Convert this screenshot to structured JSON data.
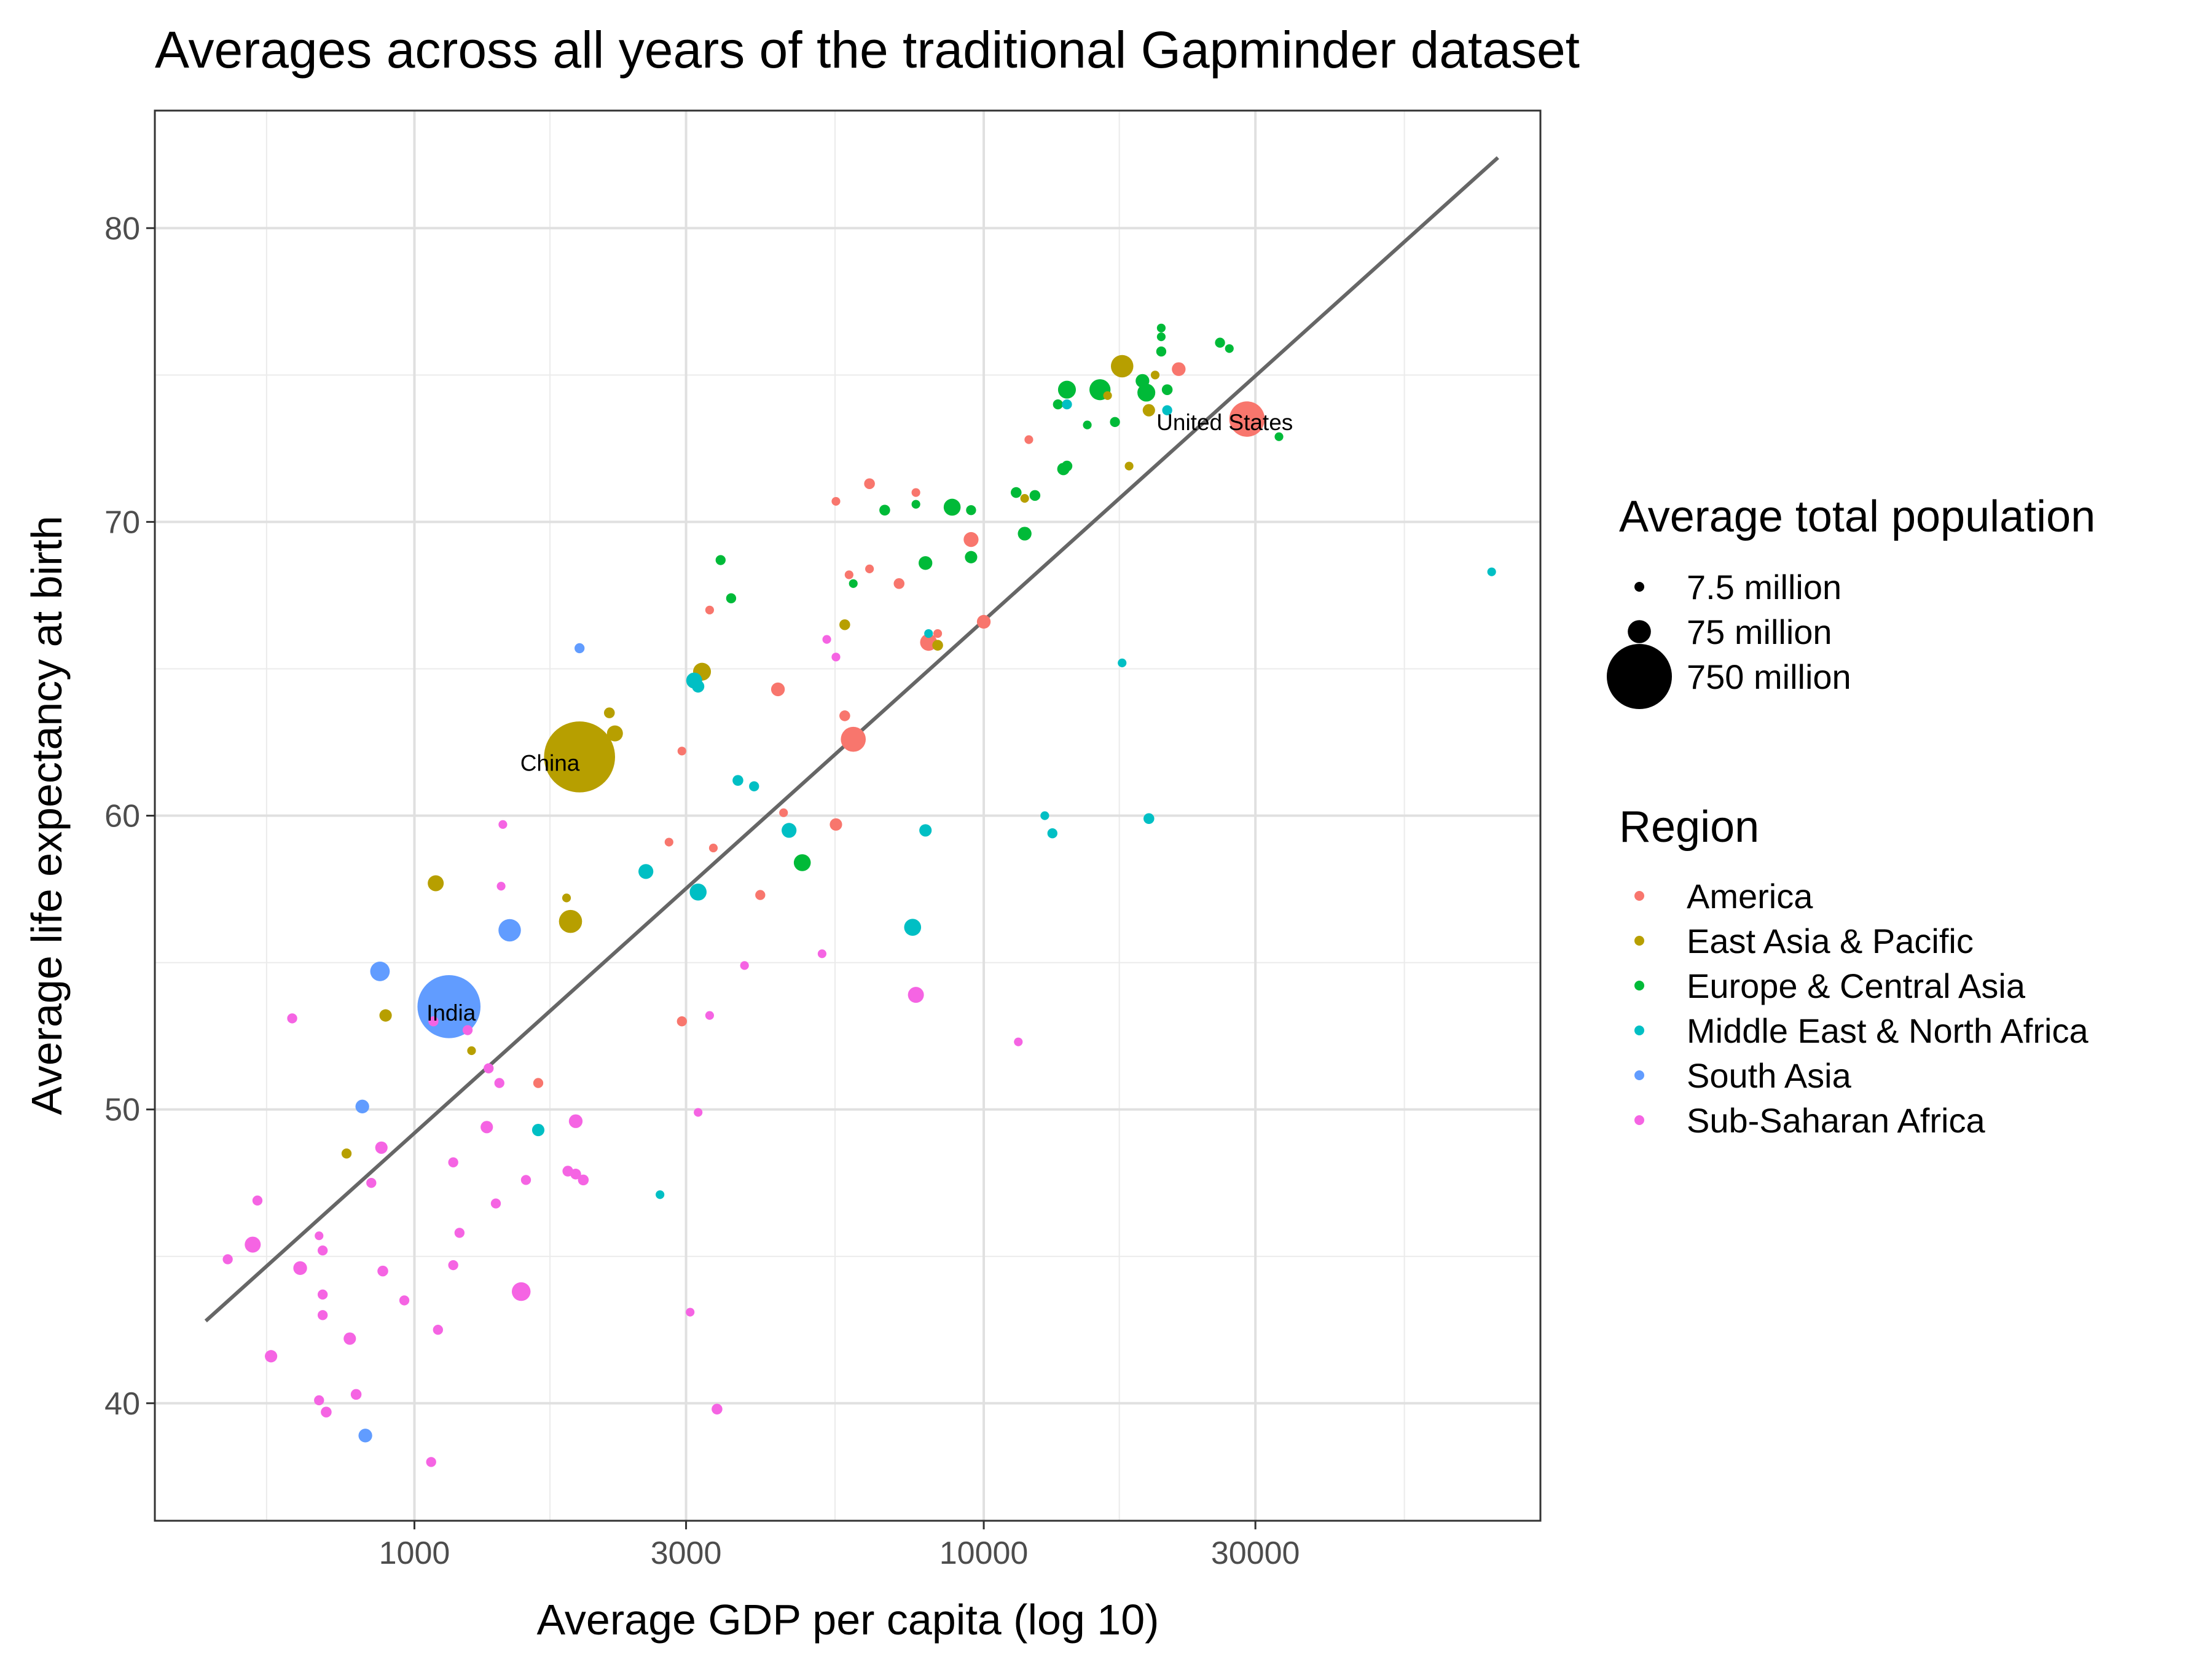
{
  "chart_data": {
    "type": "scatter",
    "title": "Averages across all years of the traditional Gapminder dataset",
    "xlabel": "Average GDP per capita (log 10)",
    "ylabel": "Average life expectancy at birth",
    "x_scale": "log10",
    "xlim": [
      350,
      95000
    ],
    "ylim": [
      36,
      84
    ],
    "x_ticks": [
      1000,
      3000,
      10000,
      30000
    ],
    "x_tick_labels": [
      "1000",
      "3000",
      "10000",
      "30000"
    ],
    "y_ticks": [
      40,
      50,
      60,
      70,
      80
    ],
    "y_tick_labels": [
      "40",
      "50",
      "60",
      "70",
      "80"
    ],
    "grid": true,
    "legend_position": "right",
    "size_legend": {
      "title": "Average total population",
      "entries": [
        {
          "label": "7.5 million",
          "value": 7.5
        },
        {
          "label": "75 million",
          "value": 75
        },
        {
          "label": "750 million",
          "value": 750
        }
      ]
    },
    "color_legend": {
      "title": "Region",
      "entries": [
        {
          "label": "America",
          "color": "#F8766D"
        },
        {
          "label": "East Asia & Pacific",
          "color": "#B79F00"
        },
        {
          "label": "Europe & Central Asia",
          "color": "#00BA38"
        },
        {
          "label": "Middle East & North Africa",
          "color": "#00BFC4"
        },
        {
          "label": "South Asia",
          "color": "#619CFF"
        },
        {
          "label": "Sub-Saharan Africa",
          "color": "#F564E3"
        }
      ]
    },
    "trend_line": {
      "color": "#666666",
      "x": [
        430,
        80000
      ],
      "y": [
        42.8,
        82.4
      ]
    },
    "labels": [
      {
        "text": "China",
        "x": 1730,
        "y": 61.8
      },
      {
        "text": "India",
        "x": 1160,
        "y": 53.3
      },
      {
        "text": "United States",
        "x": 26500,
        "y": 73.4
      }
    ],
    "points": [
      {
        "region": "America",
        "x": 29000,
        "y": 73.5,
        "pop": 200
      },
      {
        "region": "America",
        "x": 22000,
        "y": 75.2,
        "pop": 20
      },
      {
        "region": "America",
        "x": 12000,
        "y": 72.8,
        "pop": 5
      },
      {
        "region": "America",
        "x": 6300,
        "y": 71.3,
        "pop": 10
      },
      {
        "region": "America",
        "x": 5500,
        "y": 70.7,
        "pop": 5
      },
      {
        "region": "America",
        "x": 7600,
        "y": 71.0,
        "pop": 5
      },
      {
        "region": "America",
        "x": 9500,
        "y": 69.4,
        "pop": 25
      },
      {
        "region": "America",
        "x": 5800,
        "y": 68.2,
        "pop": 5
      },
      {
        "region": "America",
        "x": 6300,
        "y": 68.4,
        "pop": 5
      },
      {
        "region": "America",
        "x": 7100,
        "y": 67.9,
        "pop": 10
      },
      {
        "region": "America",
        "x": 3300,
        "y": 67.0,
        "pop": 5
      },
      {
        "region": "America",
        "x": 10000,
        "y": 66.6,
        "pop": 20
      },
      {
        "region": "America",
        "x": 8300,
        "y": 66.2,
        "pop": 5
      },
      {
        "region": "America",
        "x": 8000,
        "y": 65.9,
        "pop": 35
      },
      {
        "region": "America",
        "x": 4350,
        "y": 64.3,
        "pop": 20
      },
      {
        "region": "America",
        "x": 5700,
        "y": 63.4,
        "pop": 10
      },
      {
        "region": "America",
        "x": 5900,
        "y": 62.6,
        "pop": 90
      },
      {
        "region": "America",
        "x": 2950,
        "y": 62.2,
        "pop": 5
      },
      {
        "region": "America",
        "x": 4450,
        "y": 60.1,
        "pop": 5
      },
      {
        "region": "America",
        "x": 5500,
        "y": 59.7,
        "pop": 15
      },
      {
        "region": "America",
        "x": 2800,
        "y": 59.1,
        "pop": 5
      },
      {
        "region": "America",
        "x": 3350,
        "y": 58.9,
        "pop": 5
      },
      {
        "region": "America",
        "x": 4050,
        "y": 57.3,
        "pop": 8
      },
      {
        "region": "America",
        "x": 2950,
        "y": 53.0,
        "pop": 8
      },
      {
        "region": "America",
        "x": 1650,
        "y": 50.9,
        "pop": 8
      },
      {
        "region": "East Asia & Pacific",
        "x": 1950,
        "y": 62.0,
        "pop": 900
      },
      {
        "region": "East Asia & Pacific",
        "x": 17500,
        "y": 75.3,
        "pop": 70
      },
      {
        "region": "East Asia & Pacific",
        "x": 20000,
        "y": 75.0,
        "pop": 5
      },
      {
        "region": "East Asia & Pacific",
        "x": 19500,
        "y": 73.8,
        "pop": 15
      },
      {
        "region": "East Asia & Pacific",
        "x": 16500,
        "y": 74.3,
        "pop": 5
      },
      {
        "region": "East Asia & Pacific",
        "x": 18000,
        "y": 71.9,
        "pop": 5
      },
      {
        "region": "East Asia & Pacific",
        "x": 11800,
        "y": 70.8,
        "pop": 5
      },
      {
        "region": "East Asia & Pacific",
        "x": 5700,
        "y": 66.5,
        "pop": 10
      },
      {
        "region": "East Asia & Pacific",
        "x": 8300,
        "y": 65.8,
        "pop": 10
      },
      {
        "region": "East Asia & Pacific",
        "x": 3200,
        "y": 64.9,
        "pop": 40
      },
      {
        "region": "East Asia & Pacific",
        "x": 2200,
        "y": 63.5,
        "pop": 10
      },
      {
        "region": "East Asia & Pacific",
        "x": 2250,
        "y": 62.8,
        "pop": 30
      },
      {
        "region": "East Asia & Pacific",
        "x": 1090,
        "y": 57.7,
        "pop": 30
      },
      {
        "region": "East Asia & Pacific",
        "x": 1850,
        "y": 57.2,
        "pop": 5
      },
      {
        "region": "East Asia & Pacific",
        "x": 1880,
        "y": 56.4,
        "pop": 75
      },
      {
        "region": "East Asia & Pacific",
        "x": 890,
        "y": 53.2,
        "pop": 15
      },
      {
        "region": "East Asia & Pacific",
        "x": 1260,
        "y": 52.0,
        "pop": 5
      },
      {
        "region": "East Asia & Pacific",
        "x": 760,
        "y": 48.5,
        "pop": 8
      },
      {
        "region": "Europe & Central Asia",
        "x": 20500,
        "y": 76.6,
        "pop": 5
      },
      {
        "region": "Europe & Central Asia",
        "x": 20500,
        "y": 76.3,
        "pop": 5
      },
      {
        "region": "Europe & Central Asia",
        "x": 20500,
        "y": 75.8,
        "pop": 8
      },
      {
        "region": "Europe & Central Asia",
        "x": 26000,
        "y": 76.1,
        "pop": 8
      },
      {
        "region": "Europe & Central Asia",
        "x": 27000,
        "y": 75.9,
        "pop": 5
      },
      {
        "region": "Europe & Central Asia",
        "x": 14000,
        "y": 74.5,
        "pop": 40
      },
      {
        "region": "Europe & Central Asia",
        "x": 16000,
        "y": 74.5,
        "pop": 60
      },
      {
        "region": "Europe & Central Asia",
        "x": 19000,
        "y": 74.8,
        "pop": 20
      },
      {
        "region": "Europe & Central Asia",
        "x": 19300,
        "y": 74.4,
        "pop": 40
      },
      {
        "region": "Europe & Central Asia",
        "x": 21000,
        "y": 74.5,
        "pop": 10
      },
      {
        "region": "Europe & Central Asia",
        "x": 13500,
        "y": 74.0,
        "pop": 8
      },
      {
        "region": "Europe & Central Asia",
        "x": 17000,
        "y": 73.4,
        "pop": 8
      },
      {
        "region": "Europe & Central Asia",
        "x": 15200,
        "y": 73.3,
        "pop": 5
      },
      {
        "region": "Europe & Central Asia",
        "x": 33000,
        "y": 72.9,
        "pop": 5
      },
      {
        "region": "Europe & Central Asia",
        "x": 14000,
        "y": 71.9,
        "pop": 10
      },
      {
        "region": "Europe & Central Asia",
        "x": 13800,
        "y": 71.8,
        "pop": 15
      },
      {
        "region": "Europe & Central Asia",
        "x": 11400,
        "y": 71.0,
        "pop": 10
      },
      {
        "region": "Europe & Central Asia",
        "x": 12300,
        "y": 70.9,
        "pop": 10
      },
      {
        "region": "Europe & Central Asia",
        "x": 8800,
        "y": 70.5,
        "pop": 35
      },
      {
        "region": "Europe & Central Asia",
        "x": 9500,
        "y": 70.4,
        "pop": 8
      },
      {
        "region": "Europe & Central Asia",
        "x": 6700,
        "y": 70.4,
        "pop": 10
      },
      {
        "region": "Europe & Central Asia",
        "x": 7600,
        "y": 70.6,
        "pop": 5
      },
      {
        "region": "Europe & Central Asia",
        "x": 11800,
        "y": 69.6,
        "pop": 20
      },
      {
        "region": "Europe & Central Asia",
        "x": 9500,
        "y": 68.8,
        "pop": 15
      },
      {
        "region": "Europe & Central Asia",
        "x": 7900,
        "y": 68.6,
        "pop": 20
      },
      {
        "region": "Europe & Central Asia",
        "x": 3450,
        "y": 68.7,
        "pop": 8
      },
      {
        "region": "Europe & Central Asia",
        "x": 5900,
        "y": 67.9,
        "pop": 5
      },
      {
        "region": "Europe & Central Asia",
        "x": 3600,
        "y": 67.4,
        "pop": 8
      },
      {
        "region": "Europe & Central Asia",
        "x": 4800,
        "y": 58.4,
        "pop": 35
      },
      {
        "region": "Middle East & North Africa",
        "x": 78000,
        "y": 68.3,
        "pop": 5
      },
      {
        "region": "Middle East & North Africa",
        "x": 17500,
        "y": 65.2,
        "pop": 5
      },
      {
        "region": "Middle East & North Africa",
        "x": 21000,
        "y": 73.8,
        "pop": 8
      },
      {
        "region": "Middle East & North Africa",
        "x": 14000,
        "y": 74.0,
        "pop": 8
      },
      {
        "region": "Middle East & North Africa",
        "x": 8000,
        "y": 66.2,
        "pop": 5
      },
      {
        "region": "Middle East & North Africa",
        "x": 3100,
        "y": 64.6,
        "pop": 30
      },
      {
        "region": "Middle East & North Africa",
        "x": 3150,
        "y": 64.4,
        "pop": 15
      },
      {
        "region": "Middle East & North Africa",
        "x": 3700,
        "y": 61.2,
        "pop": 10
      },
      {
        "region": "Middle East & North Africa",
        "x": 3950,
        "y": 61.0,
        "pop": 8
      },
      {
        "region": "Middle East & North Africa",
        "x": 4550,
        "y": 59.5,
        "pop": 25
      },
      {
        "region": "Middle East & North Africa",
        "x": 2550,
        "y": 58.1,
        "pop": 25
      },
      {
        "region": "Middle East & North Africa",
        "x": 3150,
        "y": 57.4,
        "pop": 35
      },
      {
        "region": "Middle East & North Africa",
        "x": 7900,
        "y": 59.5,
        "pop": 15
      },
      {
        "region": "Middle East & North Africa",
        "x": 7500,
        "y": 56.2,
        "pop": 35
      },
      {
        "region": "Middle East & North Africa",
        "x": 12800,
        "y": 60.0,
        "pop": 5
      },
      {
        "region": "Middle East & North Africa",
        "x": 13200,
        "y": 59.4,
        "pop": 8
      },
      {
        "region": "Middle East & North Africa",
        "x": 19500,
        "y": 59.9,
        "pop": 10
      },
      {
        "region": "Middle East & North Africa",
        "x": 1650,
        "y": 49.3,
        "pop": 15
      },
      {
        "region": "Middle East & North Africa",
        "x": 2700,
        "y": 47.1,
        "pop": 5
      },
      {
        "region": "South Asia",
        "x": 1150,
        "y": 53.5,
        "pop": 700
      },
      {
        "region": "South Asia",
        "x": 1950,
        "y": 65.7,
        "pop": 8
      },
      {
        "region": "South Asia",
        "x": 1470,
        "y": 56.1,
        "pop": 70
      },
      {
        "region": "South Asia",
        "x": 870,
        "y": 54.7,
        "pop": 50
      },
      {
        "region": "South Asia",
        "x": 810,
        "y": 50.1,
        "pop": 20
      },
      {
        "region": "South Asia",
        "x": 820,
        "y": 38.9,
        "pop": 20
      },
      {
        "region": "Sub-Saharan Africa",
        "x": 5300,
        "y": 66.0,
        "pop": 5
      },
      {
        "region": "Sub-Saharan Africa",
        "x": 5500,
        "y": 65.4,
        "pop": 5
      },
      {
        "region": "Sub-Saharan Africa",
        "x": 1430,
        "y": 59.7,
        "pop": 5
      },
      {
        "region": "Sub-Saharan Africa",
        "x": 1420,
        "y": 57.6,
        "pop": 5
      },
      {
        "region": "Sub-Saharan Africa",
        "x": 3800,
        "y": 54.9,
        "pop": 5
      },
      {
        "region": "Sub-Saharan Africa",
        "x": 5200,
        "y": 55.3,
        "pop": 5
      },
      {
        "region": "Sub-Saharan Africa",
        "x": 7600,
        "y": 53.9,
        "pop": 30
      },
      {
        "region": "Sub-Saharan Africa",
        "x": 11500,
        "y": 52.3,
        "pop": 5
      },
      {
        "region": "Sub-Saharan Africa",
        "x": 3300,
        "y": 53.2,
        "pop": 5
      },
      {
        "region": "Sub-Saharan Africa",
        "x": 3150,
        "y": 49.9,
        "pop": 5
      },
      {
        "region": "Sub-Saharan Africa",
        "x": 610,
        "y": 53.1,
        "pop": 8
      },
      {
        "region": "Sub-Saharan Africa",
        "x": 1080,
        "y": 53.0,
        "pop": 8
      },
      {
        "region": "Sub-Saharan Africa",
        "x": 1240,
        "y": 52.7,
        "pop": 8
      },
      {
        "region": "Sub-Saharan Africa",
        "x": 1350,
        "y": 51.4,
        "pop": 8
      },
      {
        "region": "Sub-Saharan Africa",
        "x": 1410,
        "y": 50.9,
        "pop": 8
      },
      {
        "region": "Sub-Saharan Africa",
        "x": 1340,
        "y": 49.4,
        "pop": 15
      },
      {
        "region": "Sub-Saharan Africa",
        "x": 1920,
        "y": 49.6,
        "pop": 20
      },
      {
        "region": "Sub-Saharan Africa",
        "x": 875,
        "y": 48.7,
        "pop": 15
      },
      {
        "region": "Sub-Saharan Africa",
        "x": 1170,
        "y": 48.2,
        "pop": 8
      },
      {
        "region": "Sub-Saharan Africa",
        "x": 1860,
        "y": 47.9,
        "pop": 10
      },
      {
        "region": "Sub-Saharan Africa",
        "x": 1920,
        "y": 47.8,
        "pop": 10
      },
      {
        "region": "Sub-Saharan Africa",
        "x": 1980,
        "y": 47.6,
        "pop": 10
      },
      {
        "region": "Sub-Saharan Africa",
        "x": 1570,
        "y": 47.6,
        "pop": 8
      },
      {
        "region": "Sub-Saharan Africa",
        "x": 840,
        "y": 47.5,
        "pop": 8
      },
      {
        "region": "Sub-Saharan Africa",
        "x": 1390,
        "y": 46.8,
        "pop": 8
      },
      {
        "region": "Sub-Saharan Africa",
        "x": 530,
        "y": 46.9,
        "pop": 8
      },
      {
        "region": "Sub-Saharan Africa",
        "x": 1200,
        "y": 45.8,
        "pop": 8
      },
      {
        "region": "Sub-Saharan Africa",
        "x": 520,
        "y": 45.4,
        "pop": 30
      },
      {
        "region": "Sub-Saharan Africa",
        "x": 680,
        "y": 45.7,
        "pop": 5
      },
      {
        "region": "Sub-Saharan Africa",
        "x": 690,
        "y": 45.2,
        "pop": 8
      },
      {
        "region": "Sub-Saharan Africa",
        "x": 630,
        "y": 44.6,
        "pop": 20
      },
      {
        "region": "Sub-Saharan Africa",
        "x": 470,
        "y": 44.9,
        "pop": 8
      },
      {
        "region": "Sub-Saharan Africa",
        "x": 1170,
        "y": 44.7,
        "pop": 8
      },
      {
        "region": "Sub-Saharan Africa",
        "x": 880,
        "y": 44.5,
        "pop": 10
      },
      {
        "region": "Sub-Saharan Africa",
        "x": 1540,
        "y": 43.8,
        "pop": 45
      },
      {
        "region": "Sub-Saharan Africa",
        "x": 690,
        "y": 43.7,
        "pop": 8
      },
      {
        "region": "Sub-Saharan Africa",
        "x": 960,
        "y": 43.5,
        "pop": 8
      },
      {
        "region": "Sub-Saharan Africa",
        "x": 3050,
        "y": 43.1,
        "pop": 5
      },
      {
        "region": "Sub-Saharan Africa",
        "x": 690,
        "y": 43.0,
        "pop": 8
      },
      {
        "region": "Sub-Saharan Africa",
        "x": 1100,
        "y": 42.5,
        "pop": 8
      },
      {
        "region": "Sub-Saharan Africa",
        "x": 770,
        "y": 42.2,
        "pop": 15
      },
      {
        "region": "Sub-Saharan Africa",
        "x": 560,
        "y": 41.6,
        "pop": 15
      },
      {
        "region": "Sub-Saharan Africa",
        "x": 790,
        "y": 40.3,
        "pop": 10
      },
      {
        "region": "Sub-Saharan Africa",
        "x": 680,
        "y": 40.1,
        "pop": 8
      },
      {
        "region": "Sub-Saharan Africa",
        "x": 700,
        "y": 39.7,
        "pop": 10
      },
      {
        "region": "Sub-Saharan Africa",
        "x": 3400,
        "y": 39.8,
        "pop": 10
      },
      {
        "region": "Sub-Saharan Africa",
        "x": 1070,
        "y": 38.0,
        "pop": 8
      }
    ]
  }
}
